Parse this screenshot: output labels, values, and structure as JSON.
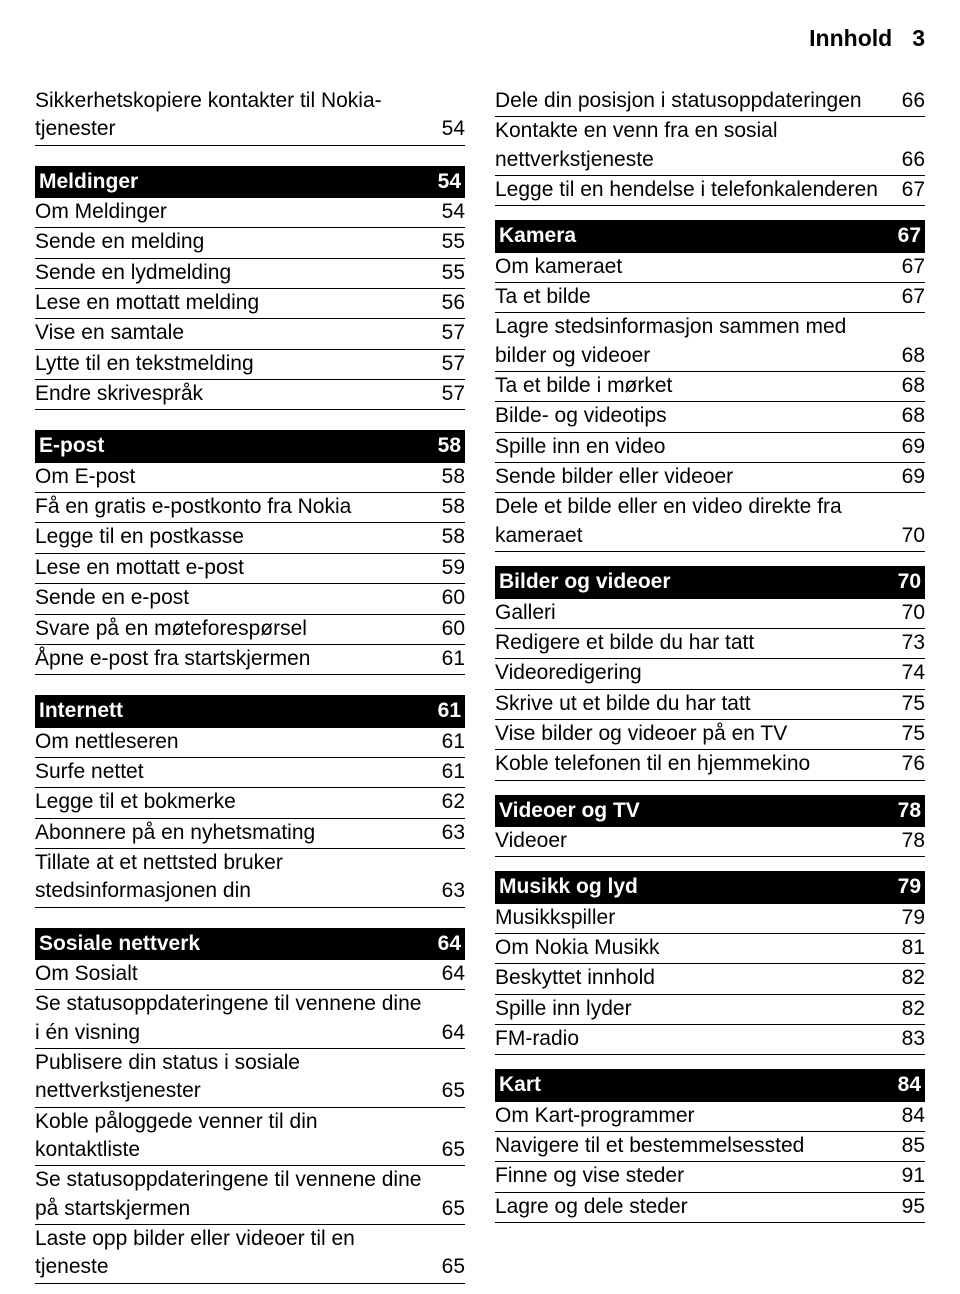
{
  "header": {
    "title": "Innhold",
    "page": "3"
  },
  "left": [
    {
      "type": "item",
      "label": "Sikkerhetskopiere kontakter til Nokia-tjenester",
      "page": "54"
    },
    {
      "type": "spacer"
    },
    {
      "type": "section",
      "label": "Meldinger",
      "page": "54"
    },
    {
      "type": "item",
      "label": "Om Meldinger",
      "page": "54"
    },
    {
      "type": "item",
      "label": "Sende en melding",
      "page": "55"
    },
    {
      "type": "item",
      "label": "Sende en lydmelding",
      "page": "55"
    },
    {
      "type": "item",
      "label": "Lese en mottatt melding",
      "page": "56"
    },
    {
      "type": "item",
      "label": "Vise en samtale",
      "page": "57"
    },
    {
      "type": "item",
      "label": "Lytte til en tekstmelding",
      "page": "57"
    },
    {
      "type": "item",
      "label": "Endre skrivespråk",
      "page": "57"
    },
    {
      "type": "spacer"
    },
    {
      "type": "section",
      "label": "E-post",
      "page": "58"
    },
    {
      "type": "item",
      "label": "Om E-post",
      "page": "58"
    },
    {
      "type": "item",
      "label": "Få en gratis e-postkonto fra Nokia",
      "page": "58"
    },
    {
      "type": "item",
      "label": "Legge til en postkasse",
      "page": "58"
    },
    {
      "type": "item",
      "label": "Lese en mottatt e-post",
      "page": "59"
    },
    {
      "type": "item",
      "label": "Sende en e-post",
      "page": "60"
    },
    {
      "type": "item",
      "label": "Svare på en møteforespørsel",
      "page": "60"
    },
    {
      "type": "item",
      "label": "Åpne e-post fra startskjermen",
      "page": "61"
    },
    {
      "type": "spacer"
    },
    {
      "type": "section",
      "label": "Internett",
      "page": "61"
    },
    {
      "type": "item",
      "label": "Om nettleseren",
      "page": "61"
    },
    {
      "type": "item",
      "label": "Surfe nettet",
      "page": "61"
    },
    {
      "type": "item",
      "label": "Legge til et bokmerke",
      "page": "62"
    },
    {
      "type": "item",
      "label": "Abonnere på en nyhetsmating",
      "page": "63"
    },
    {
      "type": "item",
      "label": "Tillate at et nettsted bruker stedsinformasjonen din",
      "page": "63"
    },
    {
      "type": "spacer"
    },
    {
      "type": "section",
      "label": "Sosiale nettverk",
      "page": "64"
    },
    {
      "type": "item",
      "label": "Om Sosialt",
      "page": "64"
    },
    {
      "type": "item",
      "label": "Se statusoppdateringene til vennene dine i én visning",
      "page": "64"
    },
    {
      "type": "item",
      "label": "Publisere din status i sosiale nettverkstjenester",
      "page": "65"
    },
    {
      "type": "item",
      "label": "Koble påloggede venner til din kontaktliste",
      "page": "65"
    },
    {
      "type": "item",
      "label": "Se statusoppdateringene til vennene dine på startskjermen",
      "page": "65"
    },
    {
      "type": "item",
      "label": "Laste opp bilder eller videoer til en tjeneste",
      "page": "65"
    }
  ],
  "right": [
    {
      "type": "item",
      "label": "Dele din posisjon i statusoppdateringen",
      "page": "66"
    },
    {
      "type": "item",
      "label": "Kontakte en venn fra en sosial nettverkstjeneste",
      "page": "66"
    },
    {
      "type": "item",
      "label": "Legge til en hendelse i telefonkalenderen",
      "page": "67"
    },
    {
      "type": "spacer-sm"
    },
    {
      "type": "section",
      "label": "Kamera",
      "page": "67"
    },
    {
      "type": "item",
      "label": "Om kameraet",
      "page": "67"
    },
    {
      "type": "item",
      "label": "Ta et bilde",
      "page": "67"
    },
    {
      "type": "item",
      "label": "Lagre stedsinformasjon sammen med bilder og videoer",
      "page": "68"
    },
    {
      "type": "item",
      "label": "Ta et bilde i mørket",
      "page": "68"
    },
    {
      "type": "item",
      "label": "Bilde- og videotips",
      "page": "68"
    },
    {
      "type": "item",
      "label": "Spille inn en video",
      "page": "69"
    },
    {
      "type": "item",
      "label": "Sende bilder eller videoer",
      "page": "69"
    },
    {
      "type": "item",
      "label": "Dele et bilde eller en video direkte fra kameraet",
      "page": "70"
    },
    {
      "type": "spacer-sm"
    },
    {
      "type": "section",
      "label": "Bilder og videoer",
      "page": "70"
    },
    {
      "type": "item",
      "label": "Galleri",
      "page": "70"
    },
    {
      "type": "item",
      "label": "Redigere et bilde du har tatt",
      "page": "73"
    },
    {
      "type": "item",
      "label": "Videoredigering",
      "page": "74"
    },
    {
      "type": "item",
      "label": "Skrive ut et bilde du har tatt",
      "page": "75"
    },
    {
      "type": "item",
      "label": "Vise bilder og videoer på en TV",
      "page": "75"
    },
    {
      "type": "item",
      "label": "Koble telefonen til en hjemmekino",
      "page": "76"
    },
    {
      "type": "spacer-sm"
    },
    {
      "type": "section",
      "label": "Videoer og TV",
      "page": "78"
    },
    {
      "type": "item",
      "label": "Videoer",
      "page": "78"
    },
    {
      "type": "spacer-sm"
    },
    {
      "type": "section",
      "label": "Musikk og lyd",
      "page": "79"
    },
    {
      "type": "item",
      "label": "Musikkspiller",
      "page": "79"
    },
    {
      "type": "item",
      "label": "Om Nokia Musikk",
      "page": "81"
    },
    {
      "type": "item",
      "label": "Beskyttet innhold",
      "page": "82"
    },
    {
      "type": "item",
      "label": "Spille inn lyder",
      "page": "82"
    },
    {
      "type": "item",
      "label": "FM-radio",
      "page": "83"
    },
    {
      "type": "spacer-sm"
    },
    {
      "type": "section",
      "label": "Kart",
      "page": "84"
    },
    {
      "type": "item",
      "label": "Om Kart-programmer",
      "page": "84"
    },
    {
      "type": "item",
      "label": "Navigere til et bestemmelsessted",
      "page": "85"
    },
    {
      "type": "item",
      "label": "Finne og vise steder",
      "page": "91"
    },
    {
      "type": "item",
      "label": "Lagre og dele steder",
      "page": "95"
    }
  ]
}
